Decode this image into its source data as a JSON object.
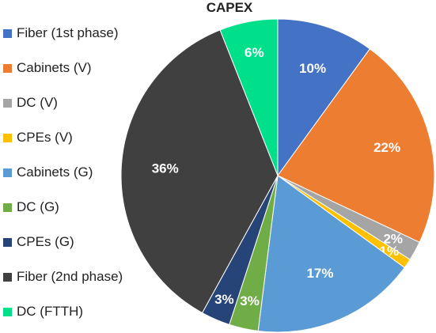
{
  "chart_data": {
    "type": "pie",
    "title": "CAPEX",
    "legend_position": "left",
    "slices": [
      {
        "label": "Fiber (1st phase)",
        "value": 10,
        "data_label": "10%",
        "color": "#4472C4"
      },
      {
        "label": "Cabinets (V)",
        "value": 22,
        "data_label": "22%",
        "color": "#ED7D31"
      },
      {
        "label": "DC (V)",
        "value": 2,
        "data_label": "2%",
        "color": "#A5A5A5"
      },
      {
        "label": "CPEs (V)",
        "value": 1,
        "data_label": "1%",
        "color": "#FFC000"
      },
      {
        "label": "Cabinets (G)",
        "value": 17,
        "data_label": "17%",
        "color": "#5B9BD5"
      },
      {
        "label": "DC (G)",
        "value": 3,
        "data_label": "3%",
        "color": "#70AD47"
      },
      {
        "label": "CPEs (G)",
        "value": 3,
        "data_label": "3%",
        "color": "#264478"
      },
      {
        "label": "Fiber (2nd phase)",
        "value": 36,
        "data_label": "36%",
        "color": "#404040"
      },
      {
        "label": "DC (FTTH)",
        "value": 6,
        "data_label": "6%",
        "color": "#00E08A"
      }
    ]
  }
}
